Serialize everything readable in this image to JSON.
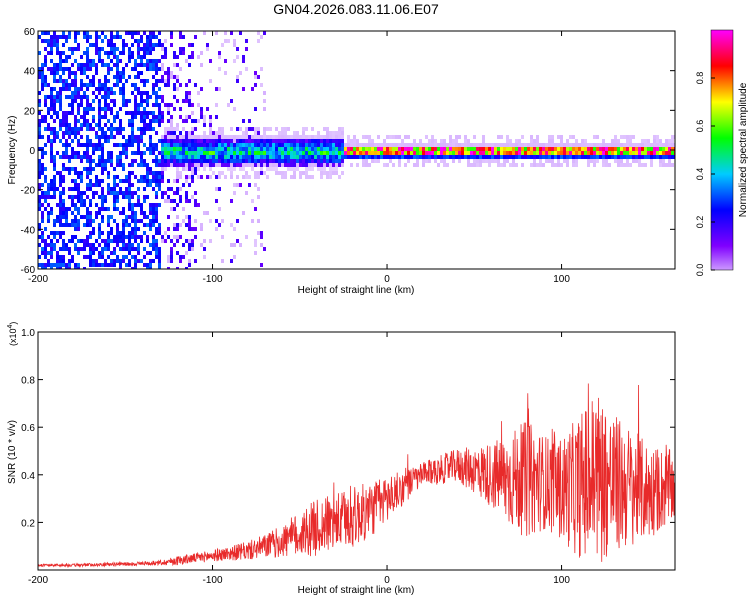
{
  "title": "GN04.2026.083.11.06.E07",
  "chart_data": [
    {
      "type": "heatmap",
      "xlabel": "Height of straight line (km)",
      "ylabel": "Frequency (Hz)",
      "xlim": [
        -200,
        165
      ],
      "ylim": [
        -60,
        60
      ],
      "x_ticks": [
        "-200",
        "-100",
        "0",
        "100"
      ],
      "y_ticks": [
        "60",
        "40",
        "20",
        "0",
        "-20",
        "-40",
        "-60"
      ],
      "colorbar": {
        "label": "Normalized spectral amplitude",
        "range": [
          0,
          1
        ],
        "ticks": [
          "0.0",
          "0.2",
          "0.4",
          "0.6",
          "0.8"
        ],
        "stops": [
          "#8000ff",
          "#0000ff",
          "#00ffff",
          "#00ff00",
          "#ffff00",
          "#ff0000",
          "#ff00ff"
        ]
      },
      "description_regions": [
        {
          "x_from": -200,
          "x_to": -130,
          "freq_spread": 60,
          "level": 0.15
        },
        {
          "x_from": -130,
          "x_to": -70,
          "freq_spread": 12,
          "level": 0.3
        },
        {
          "x_from": -70,
          "x_to": -25,
          "freq_spread": 10,
          "level": 0.35
        },
        {
          "x_from": -25,
          "x_to": 165,
          "freq_spread": 4,
          "level": 0.8
        }
      ]
    },
    {
      "type": "line",
      "series": [
        {
          "name": "SNR",
          "color": "#e82a2a"
        }
      ],
      "xlabel": "Height of straight line (km)",
      "ylabel": "SNR (10 * v/v)",
      "yscale_label": "(x10",
      "yscale_exp": "4",
      "yscale_close": ")",
      "xlim": [
        -200,
        165
      ],
      "ylim": [
        0,
        1.0
      ],
      "x_ticks": [
        "-200",
        "-100",
        "0",
        "100"
      ],
      "y_ticks": [
        "1.0",
        "0.8",
        "0.6",
        "0.4",
        "0.2"
      ],
      "envelope": {
        "x": [
          -200,
          -180,
          -150,
          -130,
          -120,
          -110,
          -100,
          -90,
          -80,
          -70,
          -60,
          -50,
          -40,
          -30,
          -20,
          -10,
          0,
          10,
          20,
          30,
          40,
          50,
          60,
          70,
          80,
          90,
          100,
          110,
          120,
          130,
          140,
          150,
          165
        ],
        "mean": [
          0.02,
          0.02,
          0.025,
          0.03,
          0.04,
          0.05,
          0.06,
          0.07,
          0.08,
          0.1,
          0.12,
          0.15,
          0.18,
          0.2,
          0.22,
          0.25,
          0.3,
          0.35,
          0.4,
          0.42,
          0.44,
          0.42,
          0.4,
          0.38,
          0.38,
          0.37,
          0.34,
          0.35,
          0.4,
          0.36,
          0.35,
          0.33,
          0.35
        ],
        "amp": [
          0.005,
          0.006,
          0.008,
          0.01,
          0.02,
          0.02,
          0.025,
          0.03,
          0.04,
          0.05,
          0.07,
          0.1,
          0.12,
          0.12,
          0.13,
          0.12,
          0.1,
          0.07,
          0.05,
          0.06,
          0.07,
          0.1,
          0.14,
          0.2,
          0.25,
          0.2,
          0.22,
          0.3,
          0.38,
          0.3,
          0.25,
          0.2,
          0.15
        ]
      }
    }
  ]
}
